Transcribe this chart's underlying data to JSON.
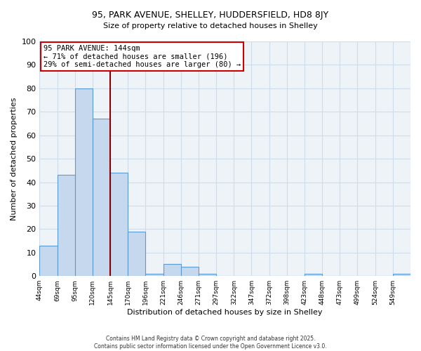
{
  "title1": "95, PARK AVENUE, SHELLEY, HUDDERSFIELD, HD8 8JY",
  "title2": "Size of property relative to detached houses in Shelley",
  "xlabel": "Distribution of detached houses by size in Shelley",
  "ylabel": "Number of detached properties",
  "bin_labels": [
    "44sqm",
    "69sqm",
    "95sqm",
    "120sqm",
    "145sqm",
    "170sqm",
    "196sqm",
    "221sqm",
    "246sqm",
    "271sqm",
    "297sqm",
    "322sqm",
    "347sqm",
    "372sqm",
    "398sqm",
    "423sqm",
    "448sqm",
    "473sqm",
    "499sqm",
    "524sqm",
    "549sqm"
  ],
  "bar_heights": [
    13,
    43,
    80,
    67,
    44,
    19,
    1,
    5,
    4,
    1,
    0,
    0,
    0,
    0,
    0,
    1,
    0,
    0,
    0,
    0,
    1
  ],
  "bar_color": "#c5d8ed",
  "bar_edge_color": "#5b9bd5",
  "vline_pos": 4.0,
  "vline_color": "#8b0000",
  "ylim": [
    0,
    100
  ],
  "yticks": [
    0,
    10,
    20,
    30,
    40,
    50,
    60,
    70,
    80,
    90,
    100
  ],
  "annotation_title": "95 PARK AVENUE: 144sqm",
  "annotation_line1": "← 71% of detached houses are smaller (196)",
  "annotation_line2": "29% of semi-detached houses are larger (80) →",
  "annotation_box_color": "#ffffff",
  "annotation_box_edge": "#cc0000",
  "grid_color": "#d0dce8",
  "bg_color": "#eef3f8",
  "footer1": "Contains HM Land Registry data © Crown copyright and database right 2025.",
  "footer2": "Contains public sector information licensed under the Open Government Licence v3.0."
}
